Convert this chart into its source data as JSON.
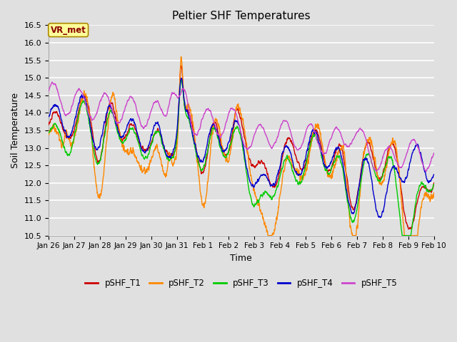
{
  "title": "Peltier SHF Temperatures",
  "xlabel": "Time",
  "ylabel": "Soil Temperature",
  "ylim": [
    10.5,
    16.5
  ],
  "yticks": [
    10.5,
    11.0,
    11.5,
    12.0,
    12.5,
    13.0,
    13.5,
    14.0,
    14.5,
    15.0,
    15.5,
    16.0,
    16.5
  ],
  "xtick_labels": [
    "Jan 26",
    "Jan 27",
    "Jan 28",
    "Jan 29",
    "Jan 30",
    "Jan 31",
    "Feb 1",
    "Feb 2",
    "Feb 3",
    "Feb 4",
    "Feb 5",
    "Feb 6",
    "Feb 7",
    "Feb 8",
    "Feb 9",
    "Feb 10"
  ],
  "series_colors": {
    "pSHF_T1": "#cc0000",
    "pSHF_T2": "#ff8800",
    "pSHF_T3": "#00cc00",
    "pSHF_T4": "#0000cc",
    "pSHF_T5": "#cc44cc"
  },
  "line_width": 1.0,
  "background_color": "#e0e0e0",
  "grid_color": "#ffffff",
  "annotation_text": "VR_met",
  "annotation_bg": "#ffff99",
  "annotation_border": "#aa8800",
  "annotation_text_color": "#880000",
  "n_points": 2000
}
